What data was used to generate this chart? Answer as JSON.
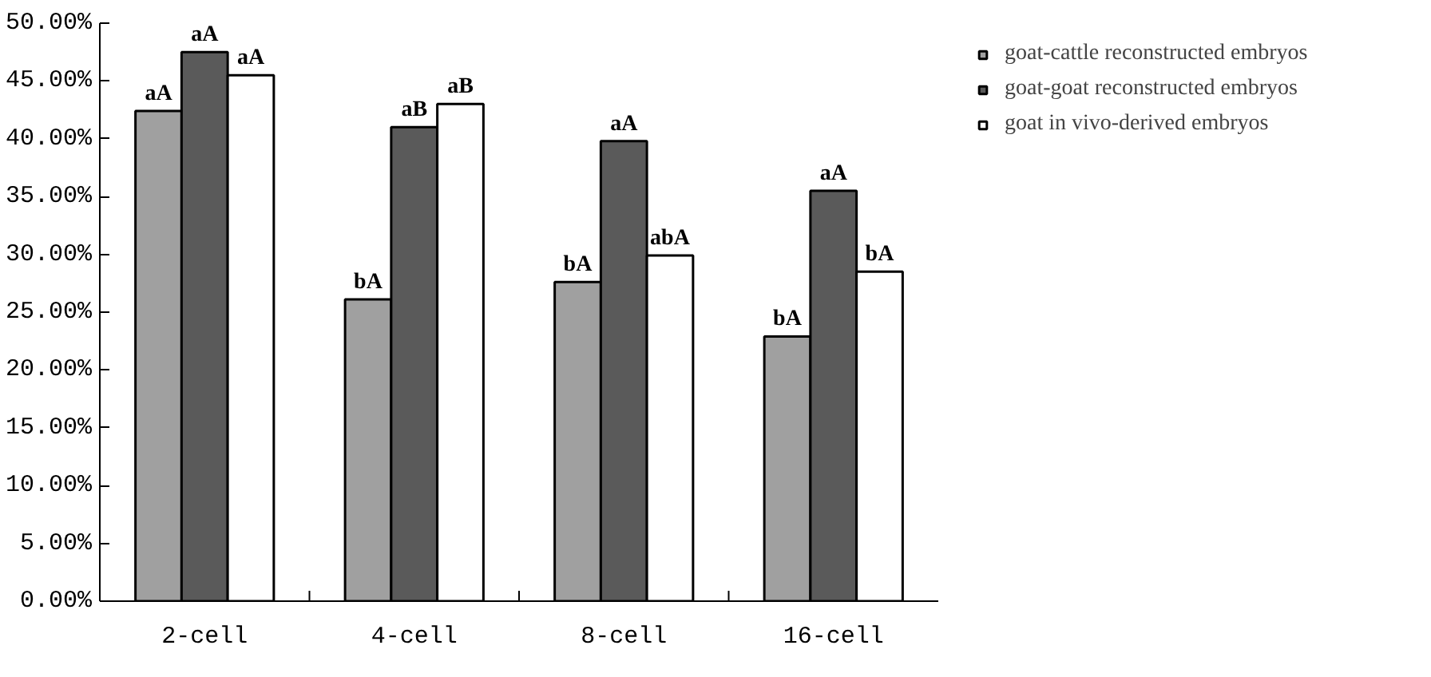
{
  "chart_data": {
    "type": "bar",
    "categories": [
      "2-cell",
      "4-cell",
      "8-cell",
      "16-cell"
    ],
    "series": [
      {
        "name": "goat-cattle reconstructed embryos",
        "color": "#a0a0a0",
        "values": [
          42.4,
          26.1,
          27.6,
          22.9
        ],
        "value_labels": [
          "aA",
          "bA",
          "bA",
          "bA"
        ]
      },
      {
        "name": "goat-goat reconstructed embryos",
        "color": "#5a5a5a",
        "values": [
          47.5,
          41.0,
          39.8,
          35.5
        ],
        "value_labels": [
          "aA",
          "aB",
          "aA",
          "aA"
        ]
      },
      {
        "name": "goat in vivo-derived embryos",
        "color": "#ffffff",
        "values": [
          45.5,
          43.0,
          29.9,
          28.5
        ],
        "value_labels": [
          "aA",
          "aB",
          "abA",
          "bA"
        ]
      }
    ],
    "ylim": [
      0,
      50
    ],
    "yticks": [
      {
        "value": 0,
        "label": "0.00%"
      },
      {
        "value": 5,
        "label": "5.00%"
      },
      {
        "value": 10,
        "label": "10.00%"
      },
      {
        "value": 15,
        "label": "15.00%"
      },
      {
        "value": 20,
        "label": "20.00%"
      },
      {
        "value": 25,
        "label": "25.00%"
      },
      {
        "value": 30,
        "label": "30.00%"
      },
      {
        "value": 35,
        "label": "35.00%"
      },
      {
        "value": 40,
        "label": "40.00%"
      },
      {
        "value": 45,
        "label": "45.00%"
      },
      {
        "value": 50,
        "label": "50.00%"
      }
    ],
    "grid": false,
    "legend": "top right"
  }
}
